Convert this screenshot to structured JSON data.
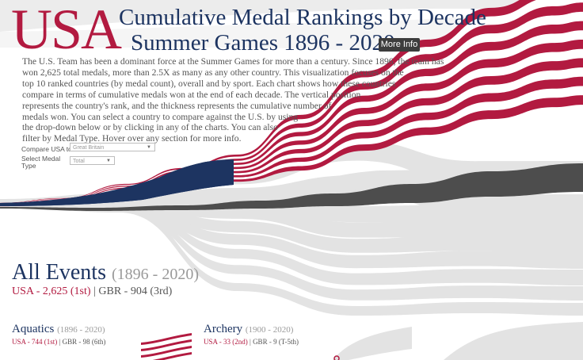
{
  "header": {
    "big_label": "USA",
    "title_line1": "Cumulative Medal Rankings by Decade",
    "title_line2": "Summer Games 1896 - 2020",
    "more_info": "More Info"
  },
  "intro_lines": [
    "The U.S. Team has been a dominant force at the Summer Games for more than a century. Since 1896, the team has",
    "won 2,625 total medals, more than 2.5X as many as any other country. This visualization focuses on the",
    "top 10 ranked countries (by medal count), overall and by sport. Each chart shows how these countries",
    "compare in terms of cumulative medals won at the end of each decade. The vertical position",
    "represents the country's rank, and the thickness represents the cumulative number of",
    "medals won. You can select a country to compare against the U.S. by using",
    "the drop-down below or by clicking in any of the charts. You can also",
    "filter by Medal Type. Hover over any section for more info."
  ],
  "controls": {
    "compare_label": "Compare USA to",
    "compare_value": "Great Britain",
    "medal_label_line1": "Select Medal",
    "medal_label_line2": "Type",
    "medal_value": "Total"
  },
  "all_events": {
    "title": "All Events",
    "years": "(1896 - 2020)",
    "usa": "USA - 2,625 (1st)",
    "sep": " | ",
    "other": "GBR - 904 (3rd)"
  },
  "sports": [
    {
      "name": "Aquatics",
      "years": "(1896 - 2020)",
      "usa": "USA - 744 (1st)",
      "sep": " | ",
      "other": "GBR - 98 (6th)"
    },
    {
      "name": "Archery",
      "years": "(1900 - 2020)",
      "usa": "USA - 33 (2nd)",
      "sep": " | ",
      "other": "GBR - 9 (T-5th)"
    }
  ],
  "colors": {
    "usa_red": "#b21a40",
    "usa_navy": "#1d3461",
    "gbr_gray": "#4d4d4d",
    "other_gray": "#e3e3e3"
  }
}
